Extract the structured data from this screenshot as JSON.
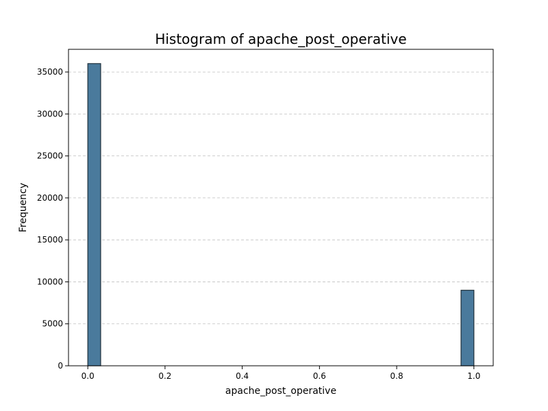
{
  "chart_data": {
    "type": "bar",
    "title": "Histogram of apache_post_operative",
    "xlabel": "apache_post_operative",
    "ylabel": "Frequency",
    "xlim": [
      -0.05,
      1.05
    ],
    "ylim": [
      0,
      37700
    ],
    "xticks": [
      0.0,
      0.2,
      0.4,
      0.6,
      0.8,
      1.0
    ],
    "xtick_labels": [
      "0.0",
      "0.2",
      "0.4",
      "0.6",
      "0.8",
      "1.0"
    ],
    "yticks": [
      0,
      5000,
      10000,
      15000,
      20000,
      25000,
      30000,
      35000
    ],
    "ytick_labels": [
      "0",
      "5000",
      "10000",
      "15000",
      "20000",
      "25000",
      "30000",
      "35000"
    ],
    "grid": "y-dashed",
    "bar_color": "#4a7a9c",
    "bins": [
      {
        "x0": 0.0,
        "x1": 0.0333,
        "value": 36000
      },
      {
        "x0": 0.9667,
        "x1": 1.0,
        "value": 9000
      }
    ]
  }
}
